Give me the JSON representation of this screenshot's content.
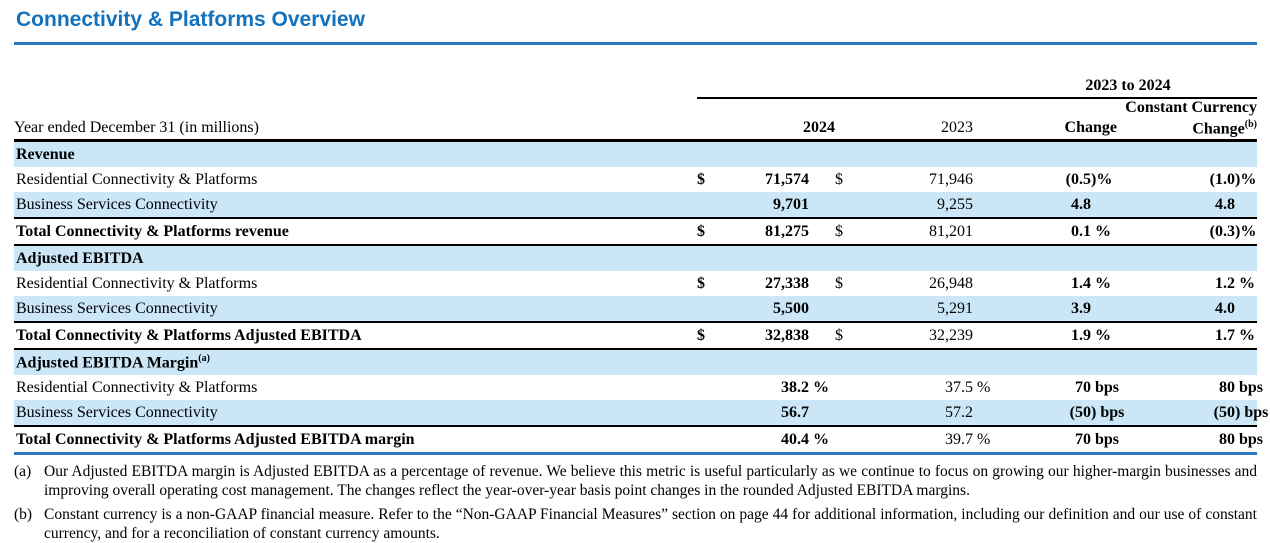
{
  "page": {
    "title": "Connectivity & Platforms Overview"
  },
  "colors": {
    "accent_blue": "#1372bd",
    "rule_blue": "#2d78bf",
    "row_shade_blue": "#cbe7f7",
    "rule_black": "#000000"
  },
  "table": {
    "period_label": "Year ended December 31 (in millions)",
    "span_header": "2023 to 2024",
    "columns": {
      "y2024": "2024",
      "y2023": "2023",
      "change": "Change",
      "cc_line1": "Constant Currency",
      "cc_line2": "Change",
      "cc_sup": "(b)"
    },
    "rows": [
      {
        "style": "section",
        "shade": true,
        "label": "Revenue"
      },
      {
        "style": "plain",
        "shade": false,
        "label": "Residential Connectivity & Platforms",
        "d1": "$",
        "v1": "71,574",
        "s1": "",
        "d2": "$",
        "v2": "71,946",
        "s2": "",
        "v3": "(0.5",
        "s3": ")%",
        "v4": "(1.0",
        "s4": ")%"
      },
      {
        "style": "plain",
        "shade": true,
        "label": "Business Services Connectivity",
        "d1": "",
        "v1": "9,701",
        "s1": "",
        "d2": "",
        "v2": "9,255",
        "s2": "",
        "v3": "4.8",
        "s3": "",
        "v4": "4.8",
        "s4": ""
      },
      {
        "style": "total",
        "shade": false,
        "label": "Total Connectivity & Platforms revenue",
        "d1": "$",
        "v1": "81,275",
        "s1": "",
        "d2": "$",
        "v2": "81,201",
        "s2": "",
        "v3": "0.1",
        "s3": " %",
        "v4": "(0.3",
        "s4": ")%"
      },
      {
        "style": "section",
        "shade": true,
        "label": "Adjusted EBITDA"
      },
      {
        "style": "plain",
        "shade": false,
        "label": "Residential Connectivity & Platforms",
        "d1": "$",
        "v1": "27,338",
        "s1": "",
        "d2": "$",
        "v2": "26,948",
        "s2": "",
        "v3": "1.4",
        "s3": " %",
        "v4": "1.2",
        "s4": " %"
      },
      {
        "style": "plain",
        "shade": true,
        "label": "Business Services Connectivity",
        "d1": "",
        "v1": "5,500",
        "s1": "",
        "d2": "",
        "v2": "5,291",
        "s2": "",
        "v3": "3.9",
        "s3": "",
        "v4": "4.0",
        "s4": ""
      },
      {
        "style": "total",
        "shade": false,
        "label": "Total Connectivity & Platforms Adjusted EBITDA",
        "d1": "$",
        "v1": "32,838",
        "s1": "",
        "d2": "$",
        "v2": "32,239",
        "s2": "",
        "v3": "1.9",
        "s3": " %",
        "v4": "1.7",
        "s4": " %"
      },
      {
        "style": "section",
        "shade": true,
        "label": "Adjusted EBITDA Margin",
        "sup": "(a)"
      },
      {
        "style": "plain",
        "shade": false,
        "label": "Residential Connectivity & Platforms",
        "d1": "",
        "v1": "38.2",
        "s1": " %",
        "d2": "",
        "v2": "37.5",
        "s2": " %",
        "v3": "70",
        "s3": " bps",
        "v4": "80",
        "s4": " bps"
      },
      {
        "style": "plain",
        "shade": true,
        "label": "Business Services Connectivity",
        "d1": "",
        "v1": "56.7",
        "s1": "",
        "d2": "",
        "v2": "57.2",
        "s2": "",
        "v3": "(50",
        "s3": ") bps",
        "v4": "(50",
        "s4": ") bps"
      },
      {
        "style": "total",
        "shade": false,
        "last": true,
        "label": "Total Connectivity & Platforms Adjusted EBITDA margin",
        "d1": "",
        "v1": "40.4",
        "s1": " %",
        "d2": "",
        "v2": "39.7",
        "s2": " %",
        "v3": "70",
        "s3": " bps",
        "v4": "80",
        "s4": " bps"
      }
    ]
  },
  "footnotes": [
    {
      "marker": "(a)",
      "text": "Our Adjusted EBITDA margin is Adjusted EBITDA as a percentage of revenue. We believe this metric is useful particularly as we continue to focus on growing our higher-margin businesses and improving overall operating cost management. The changes reflect the year-over-year basis point changes in the rounded Adjusted EBITDA margins."
    },
    {
      "marker": "(b)",
      "text": "Constant currency is a non-GAAP financial measure. Refer to the “Non-GAAP Financial Measures” section on page 44 for additional information, including our definition and our use of constant currency, and for a reconciliation of constant currency amounts."
    }
  ]
}
